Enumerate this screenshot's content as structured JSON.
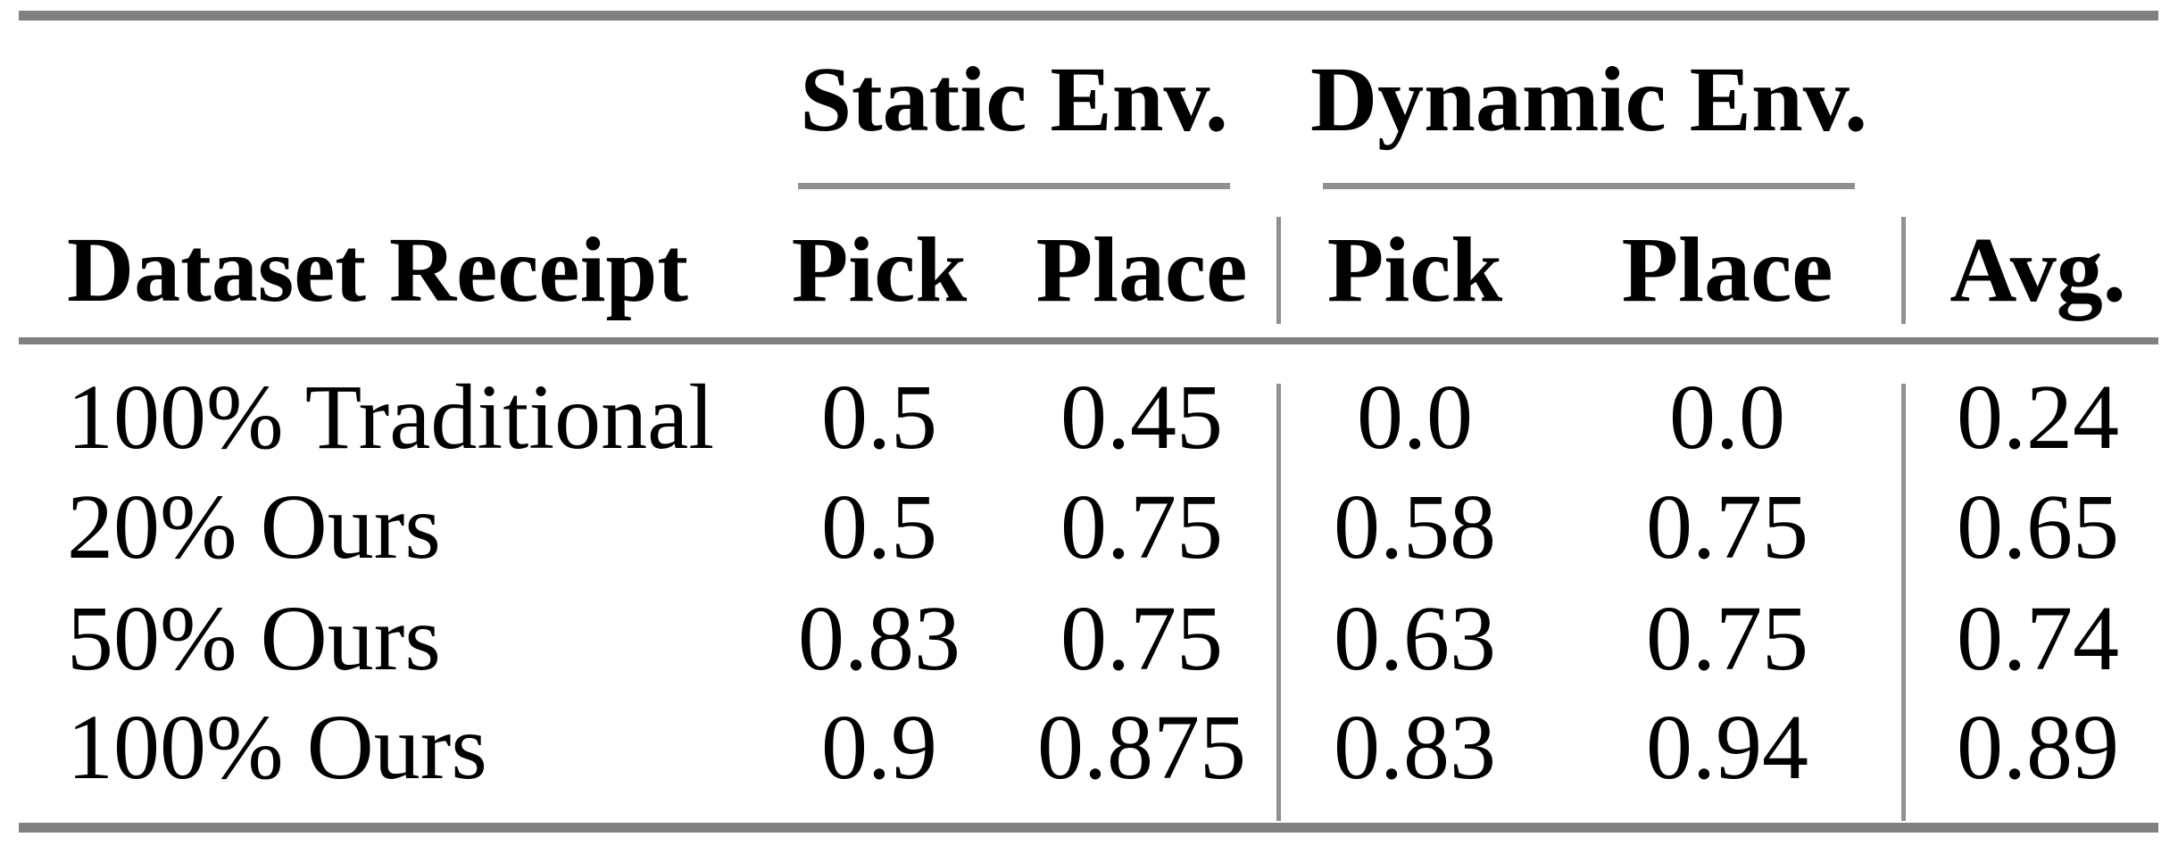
{
  "table": {
    "group_headers": [
      {
        "label": "Static Env."
      },
      {
        "label": "Dynamic Env."
      }
    ],
    "column_headers": {
      "dataset": "Dataset Receipt",
      "static_pick": "Pick",
      "static_place": "Place",
      "dynamic_pick": "Pick",
      "dynamic_place": "Place",
      "avg": "Avg."
    },
    "rows": [
      {
        "dataset": "100% Traditional",
        "static_pick": "0.5",
        "static_place": "0.45",
        "dynamic_pick": "0.0",
        "dynamic_place": "0.0",
        "avg": "0.24"
      },
      {
        "dataset": "20% Ours",
        "static_pick": "0.5",
        "static_place": "0.75",
        "dynamic_pick": "0.58",
        "dynamic_place": "0.75",
        "avg": "0.65"
      },
      {
        "dataset": "50% Ours",
        "static_pick": "0.83",
        "static_place": "0.75",
        "dynamic_pick": "0.63",
        "dynamic_place": "0.75",
        "avg": "0.74"
      },
      {
        "dataset": "100% Ours",
        "static_pick": "0.9",
        "static_place": "0.875",
        "dynamic_pick": "0.83",
        "dynamic_place": "0.94",
        "avg": "0.89"
      }
    ],
    "style": {
      "heavy_rule_color": "#808080",
      "light_rule_color": "#909090",
      "text_color": "#000000",
      "background_color": "#ffffff"
    }
  }
}
